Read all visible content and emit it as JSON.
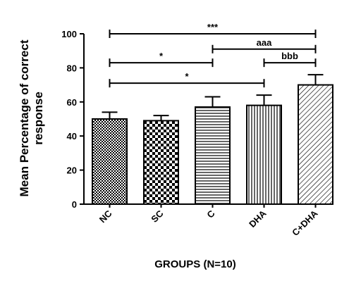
{
  "chart_data": {
    "type": "bar",
    "categories": [
      "NC",
      "SC",
      "C",
      "DHA",
      "C+DHA"
    ],
    "values": [
      50,
      49,
      57,
      58,
      70
    ],
    "errors": [
      4,
      3,
      6,
      6,
      6
    ],
    "xlabel": "GROUPS (N=10)",
    "ylabel_line1": "Mean Percentage of correct",
    "ylabel_line2": "response",
    "ylim": [
      0,
      100
    ],
    "yticks": [
      0,
      20,
      40,
      60,
      80,
      100
    ],
    "grid": false,
    "patterns": [
      "dots-fine",
      "checker",
      "horizontal-lines",
      "vertical-lines",
      "diagonal-lines"
    ],
    "significance": [
      {
        "label": "***",
        "from": 0,
        "to": 4,
        "y": 100
      },
      {
        "label": "aaa",
        "from": 2,
        "to": 4,
        "y": 91
      },
      {
        "label": "*",
        "from": 0,
        "to": 2,
        "y": 83
      },
      {
        "label": "bbb",
        "from": 3,
        "to": 4,
        "y": 83
      },
      {
        "label": "*",
        "from": 0,
        "to": 3,
        "y": 71
      }
    ]
  }
}
